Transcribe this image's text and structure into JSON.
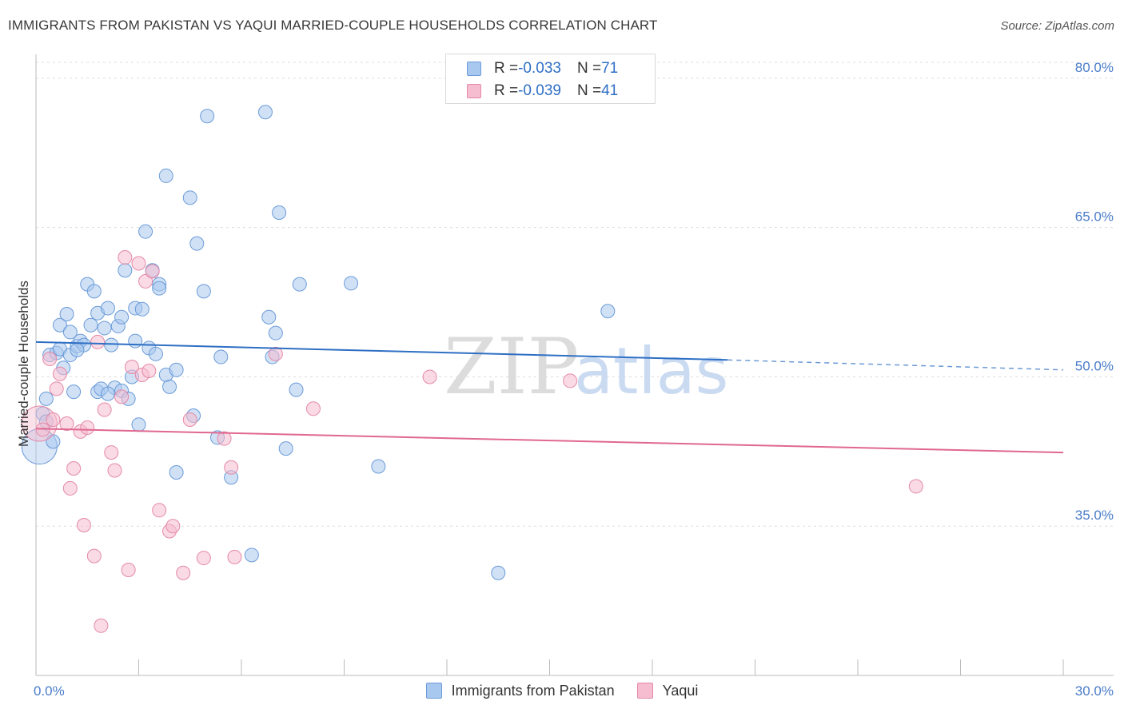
{
  "title": "IMMIGRANTS FROM PAKISTAN VS YAQUI MARRIED-COUPLE HOUSEHOLDS CORRELATION CHART",
  "source": "Source: ZipAtlas.com",
  "watermark": {
    "zip": "ZIP",
    "atlas": "atlas"
  },
  "colors": {
    "blue_fill": "#a9c8ef",
    "blue_stroke": "#6b9bd8",
    "blue_line": "#2e6fc4",
    "pink_fill": "#f6bccf",
    "pink_stroke": "#e48aa8",
    "pink_line": "#e06890",
    "axis_text": "#4a7cc9",
    "grid": "#dddddd"
  },
  "legend_top": [
    {
      "r_label": "R = ",
      "r_value": "-0.033",
      "n_label": "N = ",
      "n_value": "71"
    },
    {
      "r_label": "R = ",
      "r_value": "-0.039",
      "n_label": "N = ",
      "n_value": "41"
    }
  ],
  "chart_data": {
    "type": "scatter",
    "title": "IMMIGRANTS FROM PAKISTAN VS YAQUI MARRIED-COUPLE HOUSEHOLDS CORRELATION CHART",
    "xlabel": "",
    "ylabel": "Married-couple Households",
    "xlim": [
      0,
      30
    ],
    "ylim": [
      20,
      82
    ],
    "x_tick_labels": [
      "0.0%",
      "30.0%"
    ],
    "y_ticks": [
      35,
      50,
      65,
      80
    ],
    "y_tick_labels": [
      "35.0%",
      "50.0%",
      "65.0%",
      "80.0%"
    ],
    "x_minor_ticks": [
      0,
      3,
      6,
      9,
      12,
      15,
      18,
      21,
      24,
      27,
      30
    ],
    "grid": true,
    "legend_position": "bottom",
    "series": [
      {
        "name": "Immigrants from Pakistan",
        "color": "#a9c8ef",
        "trend": {
          "x": [
            0,
            20.2
          ],
          "y": [
            53.5,
            51.7
          ],
          "dashed_to": [
            30,
            50.7
          ]
        },
        "points": [
          {
            "x": 0.1,
            "y": 43.0,
            "big": true
          },
          {
            "x": 0.2,
            "y": 46.3
          },
          {
            "x": 0.3,
            "y": 45.5
          },
          {
            "x": 0.3,
            "y": 47.8
          },
          {
            "x": 0.4,
            "y": 52.2
          },
          {
            "x": 0.5,
            "y": 43.5
          },
          {
            "x": 0.6,
            "y": 52.4
          },
          {
            "x": 0.7,
            "y": 52.8
          },
          {
            "x": 0.7,
            "y": 55.2
          },
          {
            "x": 0.8,
            "y": 50.9
          },
          {
            "x": 0.9,
            "y": 56.3
          },
          {
            "x": 1.0,
            "y": 52.2
          },
          {
            "x": 1.0,
            "y": 54.5
          },
          {
            "x": 1.1,
            "y": 48.5
          },
          {
            "x": 1.2,
            "y": 53.1
          },
          {
            "x": 1.3,
            "y": 53.6
          },
          {
            "x": 1.4,
            "y": 53.2
          },
          {
            "x": 1.5,
            "y": 59.3
          },
          {
            "x": 1.6,
            "y": 55.2
          },
          {
            "x": 1.7,
            "y": 58.6
          },
          {
            "x": 1.8,
            "y": 48.5
          },
          {
            "x": 1.8,
            "y": 56.4
          },
          {
            "x": 1.9,
            "y": 48.8
          },
          {
            "x": 2.0,
            "y": 54.9
          },
          {
            "x": 2.1,
            "y": 56.9
          },
          {
            "x": 2.2,
            "y": 53.2
          },
          {
            "x": 2.3,
            "y": 48.9
          },
          {
            "x": 2.4,
            "y": 55.1
          },
          {
            "x": 2.5,
            "y": 48.6
          },
          {
            "x": 2.5,
            "y": 56.0
          },
          {
            "x": 2.6,
            "y": 60.7
          },
          {
            "x": 2.7,
            "y": 47.8
          },
          {
            "x": 2.8,
            "y": 50.0
          },
          {
            "x": 2.9,
            "y": 56.9
          },
          {
            "x": 2.9,
            "y": 53.6
          },
          {
            "x": 3.0,
            "y": 45.2
          },
          {
            "x": 3.1,
            "y": 56.8
          },
          {
            "x": 3.2,
            "y": 64.6
          },
          {
            "x": 3.3,
            "y": 52.9
          },
          {
            "x": 3.4,
            "y": 60.7
          },
          {
            "x": 3.5,
            "y": 52.3
          },
          {
            "x": 3.6,
            "y": 59.3
          },
          {
            "x": 3.6,
            "y": 58.9
          },
          {
            "x": 3.8,
            "y": 50.2
          },
          {
            "x": 3.8,
            "y": 70.2
          },
          {
            "x": 3.9,
            "y": 49.0
          },
          {
            "x": 4.1,
            "y": 50.7
          },
          {
            "x": 4.1,
            "y": 40.4
          },
          {
            "x": 4.5,
            "y": 68.0
          },
          {
            "x": 4.6,
            "y": 46.1
          },
          {
            "x": 4.7,
            "y": 63.4
          },
          {
            "x": 4.9,
            "y": 58.6
          },
          {
            "x": 5.0,
            "y": 76.2
          },
          {
            "x": 5.3,
            "y": 43.9
          },
          {
            "x": 5.4,
            "y": 52.0
          },
          {
            "x": 5.7,
            "y": 39.9
          },
          {
            "x": 6.3,
            "y": 32.1
          },
          {
            "x": 6.7,
            "y": 76.6
          },
          {
            "x": 6.8,
            "y": 56.0
          },
          {
            "x": 6.9,
            "y": 52.0
          },
          {
            "x": 7.0,
            "y": 54.4
          },
          {
            "x": 7.1,
            "y": 66.5
          },
          {
            "x": 7.3,
            "y": 42.8
          },
          {
            "x": 7.6,
            "y": 48.7
          },
          {
            "x": 7.7,
            "y": 59.3
          },
          {
            "x": 9.2,
            "y": 59.4
          },
          {
            "x": 10.0,
            "y": 41.0
          },
          {
            "x": 13.5,
            "y": 30.3
          },
          {
            "x": 16.7,
            "y": 56.6
          },
          {
            "x": 1.2,
            "y": 52.7
          },
          {
            "x": 2.1,
            "y": 48.3
          }
        ]
      },
      {
        "name": "Yaqui",
        "color": "#f6bccf",
        "trend": {
          "x": [
            0,
            30
          ],
          "y": [
            44.8,
            42.4
          ]
        },
        "points": [
          {
            "x": 0.1,
            "y": 45.3,
            "big": true
          },
          {
            "x": 0.2,
            "y": 44.7
          },
          {
            "x": 0.4,
            "y": 51.8
          },
          {
            "x": 0.5,
            "y": 45.7
          },
          {
            "x": 0.6,
            "y": 48.8
          },
          {
            "x": 0.7,
            "y": 50.3
          },
          {
            "x": 0.9,
            "y": 45.3
          },
          {
            "x": 1.0,
            "y": 38.8
          },
          {
            "x": 1.1,
            "y": 40.8
          },
          {
            "x": 1.3,
            "y": 44.5
          },
          {
            "x": 1.4,
            "y": 35.1
          },
          {
            "x": 1.5,
            "y": 44.9
          },
          {
            "x": 1.7,
            "y": 32.0
          },
          {
            "x": 1.8,
            "y": 53.5
          },
          {
            "x": 2.0,
            "y": 46.7
          },
          {
            "x": 2.2,
            "y": 42.4
          },
          {
            "x": 2.3,
            "y": 40.6
          },
          {
            "x": 2.5,
            "y": 48.0
          },
          {
            "x": 2.6,
            "y": 62.0
          },
          {
            "x": 2.7,
            "y": 30.6
          },
          {
            "x": 2.8,
            "y": 51.0
          },
          {
            "x": 3.0,
            "y": 61.4
          },
          {
            "x": 3.1,
            "y": 50.2
          },
          {
            "x": 3.2,
            "y": 59.6
          },
          {
            "x": 3.3,
            "y": 50.6
          },
          {
            "x": 3.4,
            "y": 60.6
          },
          {
            "x": 3.6,
            "y": 36.6
          },
          {
            "x": 3.9,
            "y": 34.5
          },
          {
            "x": 4.0,
            "y": 35.0
          },
          {
            "x": 4.3,
            "y": 30.3
          },
          {
            "x": 4.5,
            "y": 45.7
          },
          {
            "x": 4.9,
            "y": 31.8
          },
          {
            "x": 5.5,
            "y": 43.8
          },
          {
            "x": 5.7,
            "y": 40.9
          },
          {
            "x": 5.8,
            "y": 31.9
          },
          {
            "x": 7.0,
            "y": 52.3
          },
          {
            "x": 8.1,
            "y": 46.8
          },
          {
            "x": 11.5,
            "y": 50.0
          },
          {
            "x": 15.6,
            "y": 49.6
          },
          {
            "x": 25.7,
            "y": 39.0
          },
          {
            "x": 1.9,
            "y": 25.0
          }
        ]
      }
    ]
  }
}
